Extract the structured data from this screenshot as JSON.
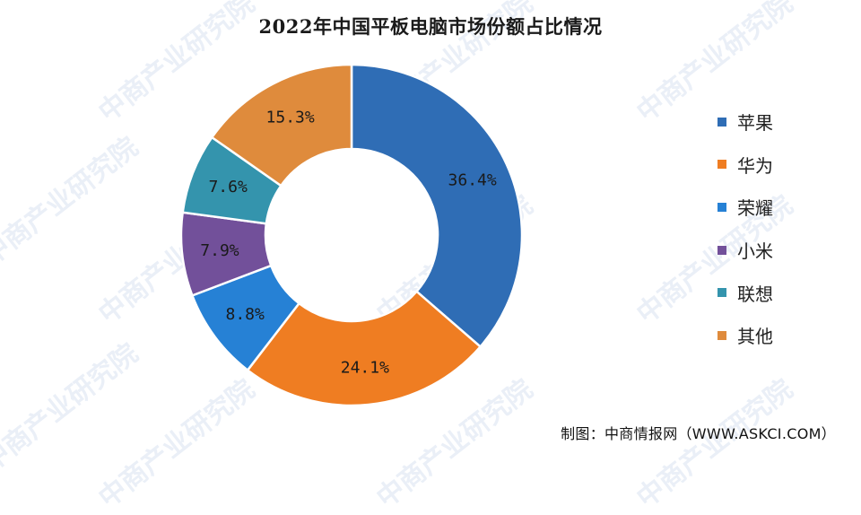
{
  "watermark": "中商产业研究院",
  "source": "制图：中商情报网（WWW.ASKCI.COM）",
  "colors": {
    "background": "#ffffff",
    "border": "#ffffff"
  },
  "chart_data": {
    "type": "pie",
    "variant": "donut",
    "title": "2022年中国平板电脑市场份额占比情况",
    "start_angle_deg": 0,
    "direction": "clockwise",
    "legend_position": "right",
    "slices": [
      {
        "label": "苹果",
        "value": 36.4,
        "display": "36.4%",
        "color": "#2f6db5"
      },
      {
        "label": "华为",
        "value": 24.1,
        "display": "24.1%",
        "color": "#ef7d22"
      },
      {
        "label": "荣耀",
        "value": 8.8,
        "display": "8.8%",
        "color": "#2681d5"
      },
      {
        "label": "小米",
        "value": 7.9,
        "display": "7.9%",
        "color": "#72509a"
      },
      {
        "label": "联想",
        "value": 7.6,
        "display": "7.6%",
        "color": "#3494ad"
      },
      {
        "label": "其他",
        "value": 15.3,
        "display": "15.3%",
        "color": "#df8b3c"
      }
    ]
  }
}
